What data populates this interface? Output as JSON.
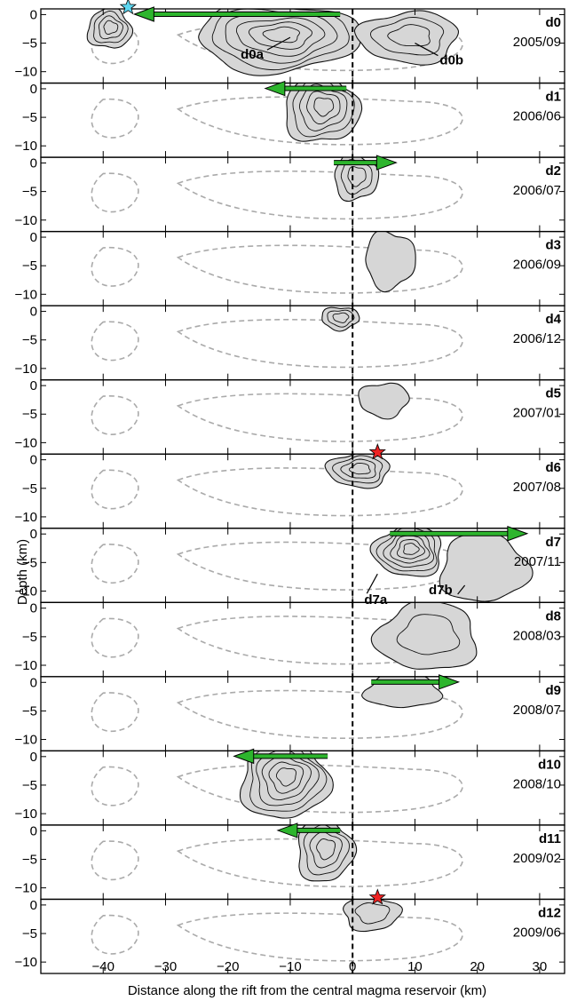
{
  "chart_data": {
    "type": "contour",
    "xlabel": "Distance along the rift from the central magma reservoir (km)",
    "ylabel": "Depth (km)",
    "xlim": [
      -50,
      34
    ],
    "ylim": [
      -12,
      1
    ],
    "xticks": [
      -40,
      -30,
      -20,
      -10,
      0,
      10,
      20,
      30
    ],
    "yticks": [
      0,
      -5,
      -10
    ],
    "grid": false,
    "reference_line": {
      "x": 0,
      "style": "dashed"
    },
    "panels": [
      {
        "id": "d0",
        "date": "2005/09",
        "arrow": {
          "from": -2,
          "to": -35
        },
        "annotations": [
          {
            "label": "d0a",
            "x": -10,
            "y": -4
          },
          {
            "label": "d0b",
            "x": 10,
            "y": -5
          }
        ],
        "event_marker": {
          "x": -36,
          "y": 1,
          "color": "#5dd6f0"
        },
        "blobs": [
          {
            "cx": -39,
            "cy": -2.5,
            "rx": 3.5,
            "ry": 3.5,
            "levels": 4
          },
          {
            "cx": -12,
            "cy": -4,
            "rx": 13,
            "ry": 6,
            "levels": 6
          },
          {
            "cx": 9,
            "cy": -4,
            "rx": 8,
            "ry": 4.5,
            "levels": 3
          }
        ]
      },
      {
        "id": "d1",
        "date": "2006/06",
        "arrow": {
          "from": -1,
          "to": -14
        },
        "blobs": [
          {
            "cx": -5,
            "cy": -3.5,
            "rx": 6,
            "ry": 6,
            "levels": 5
          }
        ]
      },
      {
        "id": "d2",
        "date": "2006/07",
        "arrow": {
          "from": -3,
          "to": 7
        },
        "blobs": [
          {
            "cx": 0.5,
            "cy": -2.5,
            "rx": 3.5,
            "ry": 4,
            "levels": 3
          }
        ]
      },
      {
        "id": "d3",
        "date": "2006/09",
        "blobs": [
          {
            "cx": 6,
            "cy": -4,
            "rx": 4,
            "ry": 5,
            "levels": 1
          }
        ]
      },
      {
        "id": "d4",
        "date": "2006/12",
        "blobs": [
          {
            "cx": -2,
            "cy": -1.2,
            "rx": 3,
            "ry": 2,
            "levels": 3
          }
        ]
      },
      {
        "id": "d5",
        "date": "2007/01",
        "blobs": [
          {
            "cx": 5,
            "cy": -2.5,
            "rx": 4,
            "ry": 3,
            "levels": 1
          }
        ]
      },
      {
        "id": "d6",
        "date": "2007/08",
        "event_marker": {
          "x": 4,
          "y": 1,
          "color": "#ee2222"
        },
        "blobs": [
          {
            "cx": 1,
            "cy": -1.8,
            "rx": 5,
            "ry": 3,
            "levels": 4
          }
        ]
      },
      {
        "id": "d7",
        "date": "2007/11",
        "arrow": {
          "from": 6,
          "to": 28
        },
        "annotations": [
          {
            "label": "d7a",
            "x": 4,
            "y": -7
          },
          {
            "label": "d7b",
            "x": 18,
            "y": -9
          }
        ],
        "blobs": [
          {
            "cx": 9,
            "cy": -3,
            "rx": 5.5,
            "ry": 4.5,
            "levels": 6
          },
          {
            "cx": 21,
            "cy": -6,
            "rx": 7,
            "ry": 6,
            "levels": 1
          }
        ]
      },
      {
        "id": "d8",
        "date": "2008/03",
        "blobs": [
          {
            "cx": 12,
            "cy": -5,
            "rx": 8,
            "ry": 6,
            "levels": 2
          }
        ]
      },
      {
        "id": "d9",
        "date": "2008/07",
        "arrow": {
          "from": 3,
          "to": 17
        },
        "blobs": [
          {
            "cx": 8,
            "cy": -1.5,
            "rx": 6,
            "ry": 3,
            "levels": 1
          }
        ]
      },
      {
        "id": "d10",
        "date": "2008/10",
        "arrow": {
          "from": -4,
          "to": -19
        },
        "blobs": [
          {
            "cx": -11,
            "cy": -4,
            "rx": 7,
            "ry": 7,
            "levels": 6
          }
        ]
      },
      {
        "id": "d11",
        "date": "2009/02",
        "arrow": {
          "from": -2,
          "to": -12
        },
        "blobs": [
          {
            "cx": -4.5,
            "cy": -3.5,
            "rx": 4.5,
            "ry": 5.5,
            "levels": 4
          }
        ]
      },
      {
        "id": "d12",
        "date": "2009/06",
        "event_marker": {
          "x": 4,
          "y": 1,
          "color": "#ee2222"
        },
        "blobs": [
          {
            "cx": 3,
            "cy": -1.5,
            "rx": 4.5,
            "ry": 3,
            "levels": 2
          }
        ]
      }
    ]
  },
  "colors": {
    "blob_fill": "#d6d6d6",
    "contour_line": "#111111",
    "dashed_outline": "#aaaaaa",
    "arrow": "#2db52d",
    "star_red": "#ee2222",
    "star_cyan": "#5dd6f0"
  }
}
